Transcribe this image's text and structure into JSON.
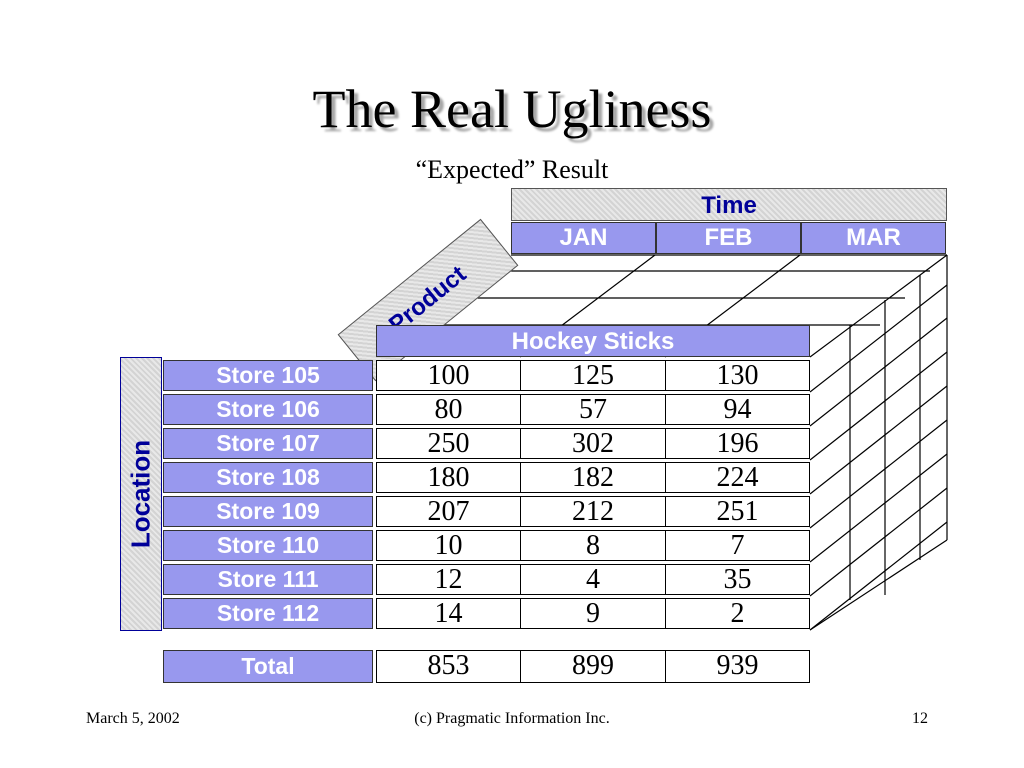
{
  "slide": {
    "title": "The Real Ugliness",
    "subtitle": "“Expected” Result"
  },
  "dimensions": {
    "time": "Time",
    "product": "Product",
    "location": "Location"
  },
  "months": [
    "JAN",
    "FEB",
    "MAR"
  ],
  "product_name": "Hockey Sticks",
  "table": {
    "rows": [
      {
        "store": "Store 105",
        "values": [
          "100",
          "125",
          "130"
        ]
      },
      {
        "store": "Store 106",
        "values": [
          "80",
          "57",
          "94"
        ]
      },
      {
        "store": "Store 107",
        "values": [
          "250",
          "302",
          "196"
        ]
      },
      {
        "store": "Store 108",
        "values": [
          "180",
          "182",
          "224"
        ]
      },
      {
        "store": "Store 109",
        "values": [
          "207",
          "212",
          "251"
        ]
      },
      {
        "store": "Store 110",
        "values": [
          "10",
          "8",
          "7"
        ]
      },
      {
        "store": "Store 111",
        "values": [
          "12",
          "4",
          "35"
        ]
      },
      {
        "store": "Store 112",
        "values": [
          "14",
          "9",
          "2"
        ]
      }
    ],
    "total_label": "Total",
    "totals": [
      "853",
      "899",
      "939"
    ]
  },
  "footer": {
    "date": "March 5, 2002",
    "copyright": "(c) Pragmatic Information Inc.",
    "page_number": "12"
  },
  "colors": {
    "header_fill": "#9898ee",
    "label_text": "#000099",
    "gray_fill": "#dcdcdc"
  }
}
